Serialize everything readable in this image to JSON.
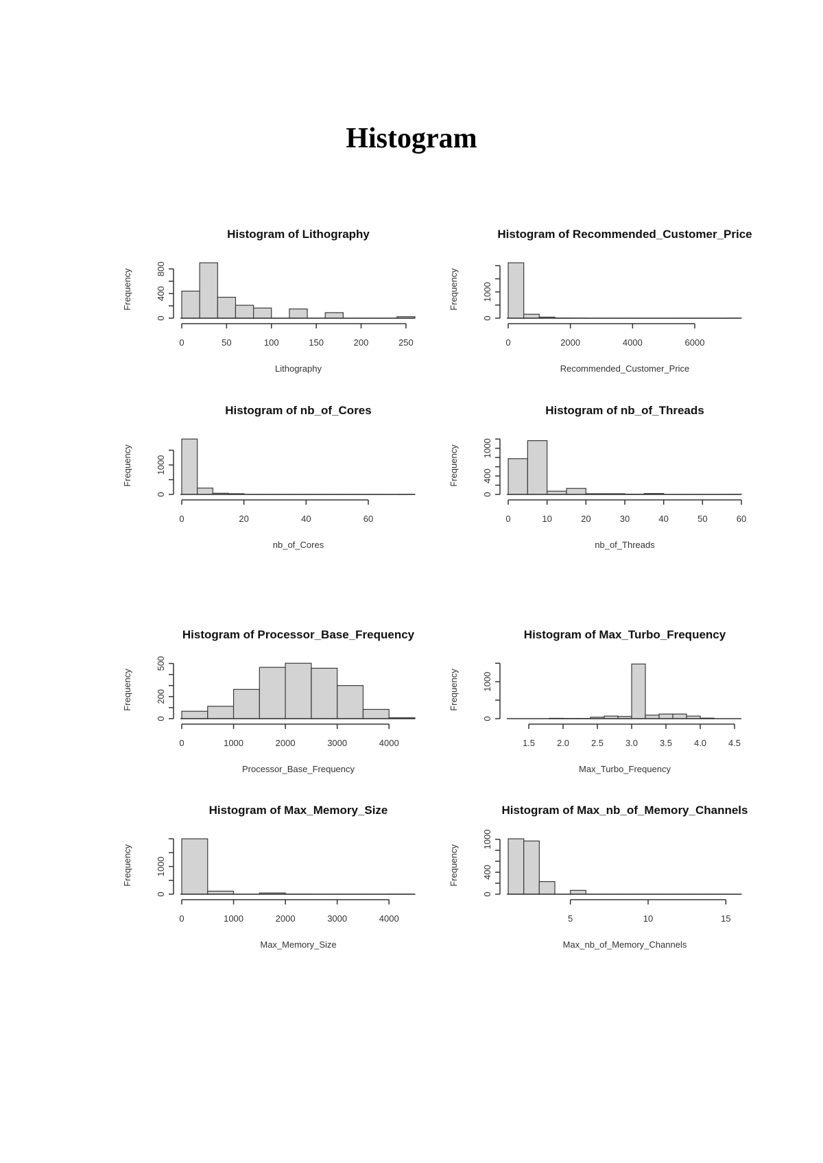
{
  "page": {
    "title": "Histogram"
  },
  "colors": {
    "bar_fill": "#d3d3d3",
    "bar_stroke": "#3a3a3a",
    "axis": "#333333"
  },
  "chart_data": [
    {
      "type": "bar",
      "title": "Histogram of Lithography",
      "xlabel": "Lithography",
      "ylabel": "Frequency",
      "breaks": [
        0,
        20,
        40,
        60,
        80,
        100,
        120,
        140,
        160,
        180,
        200,
        220,
        240,
        260
      ],
      "counts": [
        440,
        900,
        340,
        210,
        165,
        0,
        150,
        0,
        90,
        0,
        0,
        0,
        25
      ],
      "xlim": [
        0,
        260
      ],
      "xticks": [
        0,
        50,
        100,
        150,
        200,
        250
      ],
      "yticks": [
        0,
        200,
        400,
        600,
        800
      ],
      "ytick_labels": [
        "0",
        "",
        "400",
        "",
        "800"
      ]
    },
    {
      "type": "bar",
      "title": "Histogram of Recommended_Customer_Price",
      "xlabel": "Recommended_Customer_Price",
      "ylabel": "Frequency",
      "breaks": [
        0,
        500,
        1000,
        1500,
        2000,
        2500,
        3000,
        3500,
        4000,
        4500,
        5000,
        5500,
        6000,
        6500,
        7000,
        7500
      ],
      "counts": [
        2110,
        150,
        40,
        5,
        3,
        0,
        0,
        0,
        0,
        0,
        0,
        0,
        0,
        0,
        2
      ],
      "xlim": [
        0,
        7500
      ],
      "xticks": [
        0,
        2000,
        4000,
        6000
      ],
      "yticks": [
        0,
        500,
        1000,
        1500,
        2000
      ],
      "ytick_labels": [
        "0",
        "",
        "1000",
        "",
        ""
      ]
    },
    {
      "type": "bar",
      "title": "Histogram of nb_of_Cores",
      "xlabel": "nb_of_Cores",
      "ylabel": "Frequency",
      "breaks": [
        0,
        5,
        10,
        15,
        20,
        25,
        30,
        35,
        40,
        45,
        50,
        55,
        60,
        65,
        70,
        75
      ],
      "counts": [
        1880,
        215,
        40,
        25,
        0,
        0,
        0,
        0,
        0,
        0,
        0,
        0,
        0,
        0,
        2
      ],
      "xlim": [
        0,
        75
      ],
      "xticks": [
        0,
        20,
        40,
        60
      ],
      "yticks": [
        0,
        500,
        1000,
        1500
      ],
      "ytick_labels": [
        "0",
        "",
        "1000",
        ""
      ]
    },
    {
      "type": "bar",
      "title": "Histogram of nb_of_Threads",
      "xlabel": "nb_of_Threads",
      "ylabel": "Frequency",
      "breaks": [
        0,
        5,
        10,
        15,
        20,
        25,
        30,
        35,
        40,
        45,
        50,
        55,
        60
      ],
      "counts": [
        775,
        1165,
        70,
        130,
        15,
        15,
        5,
        20,
        0,
        0,
        0,
        2
      ],
      "xlim": [
        0,
        60
      ],
      "xticks": [
        0,
        10,
        20,
        30,
        40,
        50,
        60
      ],
      "yticks": [
        0,
        200,
        400,
        600,
        800,
        1000,
        1200
      ],
      "ytick_labels": [
        "0",
        "",
        "400",
        "",
        "",
        "1000",
        ""
      ]
    },
    {
      "type": "bar",
      "title": "Histogram of Processor_Base_Frequency",
      "xlabel": "Processor_Base_Frequency",
      "ylabel": "Frequency",
      "breaks": [
        0,
        500,
        1000,
        1500,
        2000,
        2500,
        3000,
        3500,
        4000,
        4500
      ],
      "counts": [
        67,
        112,
        265,
        465,
        502,
        457,
        300,
        84,
        8
      ],
      "xlim": [
        0,
        4500
      ],
      "xticks": [
        0,
        1000,
        2000,
        3000,
        4000
      ],
      "yticks": [
        0,
        100,
        200,
        300,
        400,
        500
      ],
      "ytick_labels": [
        "0",
        "",
        "200",
        "",
        "",
        "500"
      ]
    },
    {
      "type": "bar",
      "title": "Histogram of Max_Turbo_Frequency",
      "xlabel": "Max_Turbo_Frequency",
      "ylabel": "Frequency",
      "breaks": [
        1.8,
        2.0,
        2.2,
        2.4,
        2.6,
        2.8,
        3.0,
        3.2,
        3.4,
        3.6,
        3.8,
        4.0,
        4.2
      ],
      "counts": [
        10,
        5,
        5,
        40,
        70,
        60,
        1480,
        95,
        125,
        125,
        70,
        15
      ],
      "xlim": [
        1.2,
        4.6
      ],
      "xticks": [
        1.5,
        2.0,
        2.5,
        3.0,
        3.5,
        4.0,
        4.5
      ],
      "yticks": [
        0,
        500,
        1000,
        1500
      ],
      "ytick_labels": [
        "0",
        "",
        "1000",
        ""
      ]
    },
    {
      "type": "bar",
      "title": "Histogram of Max_Memory_Size",
      "xlabel": "Max_Memory_Size",
      "ylabel": "Frequency",
      "breaks": [
        0,
        500,
        1000,
        1500,
        2000,
        2500,
        3000,
        3500,
        4000,
        4500
      ],
      "counts": [
        2000,
        110,
        0,
        45,
        3,
        0,
        0,
        0,
        2
      ],
      "xlim": [
        0,
        4500
      ],
      "xticks": [
        0,
        1000,
        2000,
        3000,
        4000
      ],
      "yticks": [
        0,
        500,
        1000,
        1500,
        2000
      ],
      "ytick_labels": [
        "0",
        "",
        "1000",
        "",
        ""
      ]
    },
    {
      "type": "bar",
      "title": "Histogram of Max_nb_of_Memory_Channels",
      "xlabel": "Max_nb_of_Memory_Channels",
      "ylabel": "Frequency",
      "breaks": [
        1,
        2,
        3,
        4,
        5,
        6,
        7,
        8,
        9,
        10,
        11,
        12,
        13,
        14,
        15,
        16
      ],
      "counts": [
        1010,
        970,
        230,
        0,
        70,
        0,
        0,
        0,
        0,
        0,
        0,
        0,
        0,
        0,
        0
      ],
      "xlim": [
        1,
        16
      ],
      "xticks": [
        5,
        10,
        15
      ],
      "yticks": [
        0,
        200,
        400,
        600,
        800,
        1000
      ],
      "ytick_labels": [
        "0",
        "",
        "400",
        "",
        "",
        "1000"
      ]
    }
  ]
}
